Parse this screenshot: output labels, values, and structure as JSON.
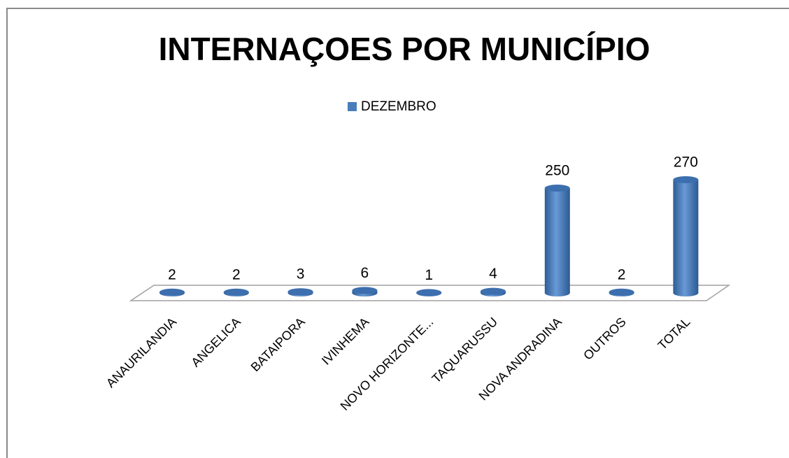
{
  "chart_data": {
    "type": "bar3d",
    "title": "INTERNAÇOES POR MUNICÍPIO",
    "categories": [
      "ANAURILANDIA",
      "ANGELICA",
      "BATAIPORA",
      "IVINHEMA",
      "NOVO HORIZONTE...",
      "TAQUARUSSU",
      "NOVA ANDRADINA",
      "OUTROS",
      "TOTAL"
    ],
    "series": [
      {
        "name": "DEZEMBRO",
        "color": "#4a7ebb",
        "values": [
          2,
          2,
          3,
          6,
          1,
          4,
          250,
          2,
          270
        ]
      }
    ],
    "legend": "top"
  }
}
